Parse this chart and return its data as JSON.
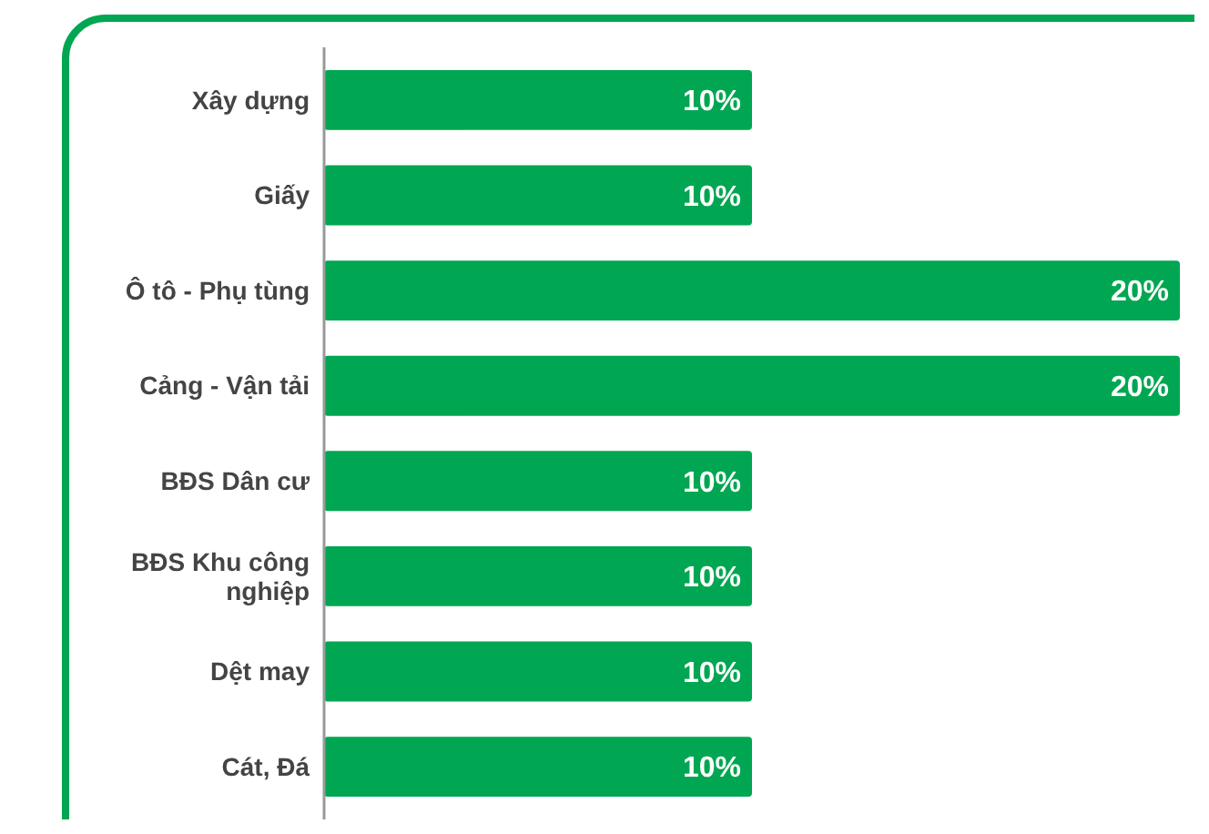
{
  "chart_data": {
    "type": "bar",
    "orientation": "horizontal",
    "categories": [
      "Xây dựng",
      "Giấy",
      "Ô tô - Phụ tùng",
      "Cảng - Vận tải",
      "BĐS Dân cư",
      "BĐS Khu công nghiệp",
      "Dệt may",
      "Cát, Đá"
    ],
    "values": [
      10,
      10,
      20,
      20,
      10,
      10,
      10,
      10
    ],
    "value_labels": [
      "10%",
      "10%",
      "20%",
      "20%",
      "10%",
      "10%",
      "10%",
      "10%"
    ],
    "color": "#00a651"
  }
}
